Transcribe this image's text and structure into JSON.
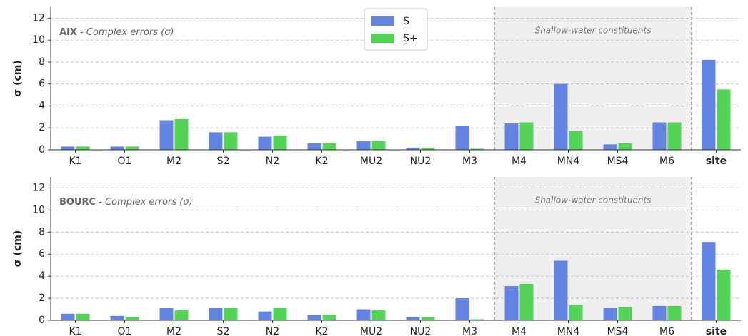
{
  "chart_data": [
    {
      "type": "bar",
      "annotation": {
        "bold": "AIX",
        "text": " - Complex errors (σ)"
      },
      "ylabel": "σ (cm)",
      "categories": [
        "K1",
        "O1",
        "M2",
        "S2",
        "N2",
        "K2",
        "MU2",
        "NU2",
        "M3",
        "M4",
        "MN4",
        "MS4",
        "M6",
        "site"
      ],
      "category_label_colors": [
        "#222",
        "#222",
        "#222",
        "#222",
        "#222",
        "#222",
        "#222",
        "#222",
        "#e03a3a",
        "#222",
        "#e03a3a",
        "#222",
        "#222",
        "#222"
      ],
      "series": [
        {
          "name": "S",
          "color": "#6484e4",
          "values": [
            0.3,
            0.3,
            2.7,
            1.6,
            1.2,
            0.6,
            0.8,
            0.2,
            2.2,
            2.4,
            6.0,
            0.5,
            2.5,
            8.2
          ]
        },
        {
          "name": "S+",
          "color": "#52d455",
          "values": [
            0.3,
            0.3,
            2.8,
            1.6,
            1.3,
            0.6,
            0.8,
            0.2,
            0.1,
            2.5,
            1.7,
            0.6,
            2.5,
            5.5
          ]
        }
      ],
      "ylim": [
        0,
        13
      ],
      "yticks": [
        0,
        2,
        4,
        6,
        8,
        10,
        12
      ],
      "grid": true,
      "shade": {
        "label": "Shallow-water constituents",
        "from": "M4",
        "to": "M6"
      },
      "legend": "upper center"
    },
    {
      "type": "bar",
      "annotation": {
        "bold": "BOURC",
        "text": " - Complex errors (σ)"
      },
      "ylabel": "σ (cm)",
      "categories": [
        "K1",
        "O1",
        "M2",
        "S2",
        "N2",
        "K2",
        "MU2",
        "NU2",
        "M3",
        "M4",
        "MN4",
        "MS4",
        "M6",
        "site"
      ],
      "category_label_colors": [
        "#222",
        "#222",
        "#222",
        "#222",
        "#222",
        "#222",
        "#222",
        "#222",
        "#e03a3a",
        "#222",
        "#e03a3a",
        "#222",
        "#222",
        "#222"
      ],
      "series": [
        {
          "name": "S",
          "color": "#6484e4",
          "values": [
            0.6,
            0.4,
            1.1,
            1.1,
            0.8,
            0.5,
            1.0,
            0.3,
            2.0,
            3.1,
            5.4,
            1.1,
            1.3,
            7.1
          ]
        },
        {
          "name": "S+",
          "color": "#52d455",
          "values": [
            0.6,
            0.3,
            0.9,
            1.1,
            1.1,
            0.5,
            0.9,
            0.3,
            0.1,
            3.3,
            1.4,
            1.2,
            1.3,
            4.6
          ]
        }
      ],
      "ylim": [
        0,
        13
      ],
      "yticks": [
        0,
        2,
        4,
        6,
        8,
        10,
        12
      ],
      "grid": true,
      "shade": {
        "label": "Shallow-water constituents",
        "from": "M4",
        "to": "M6"
      },
      "legend": "none"
    }
  ]
}
